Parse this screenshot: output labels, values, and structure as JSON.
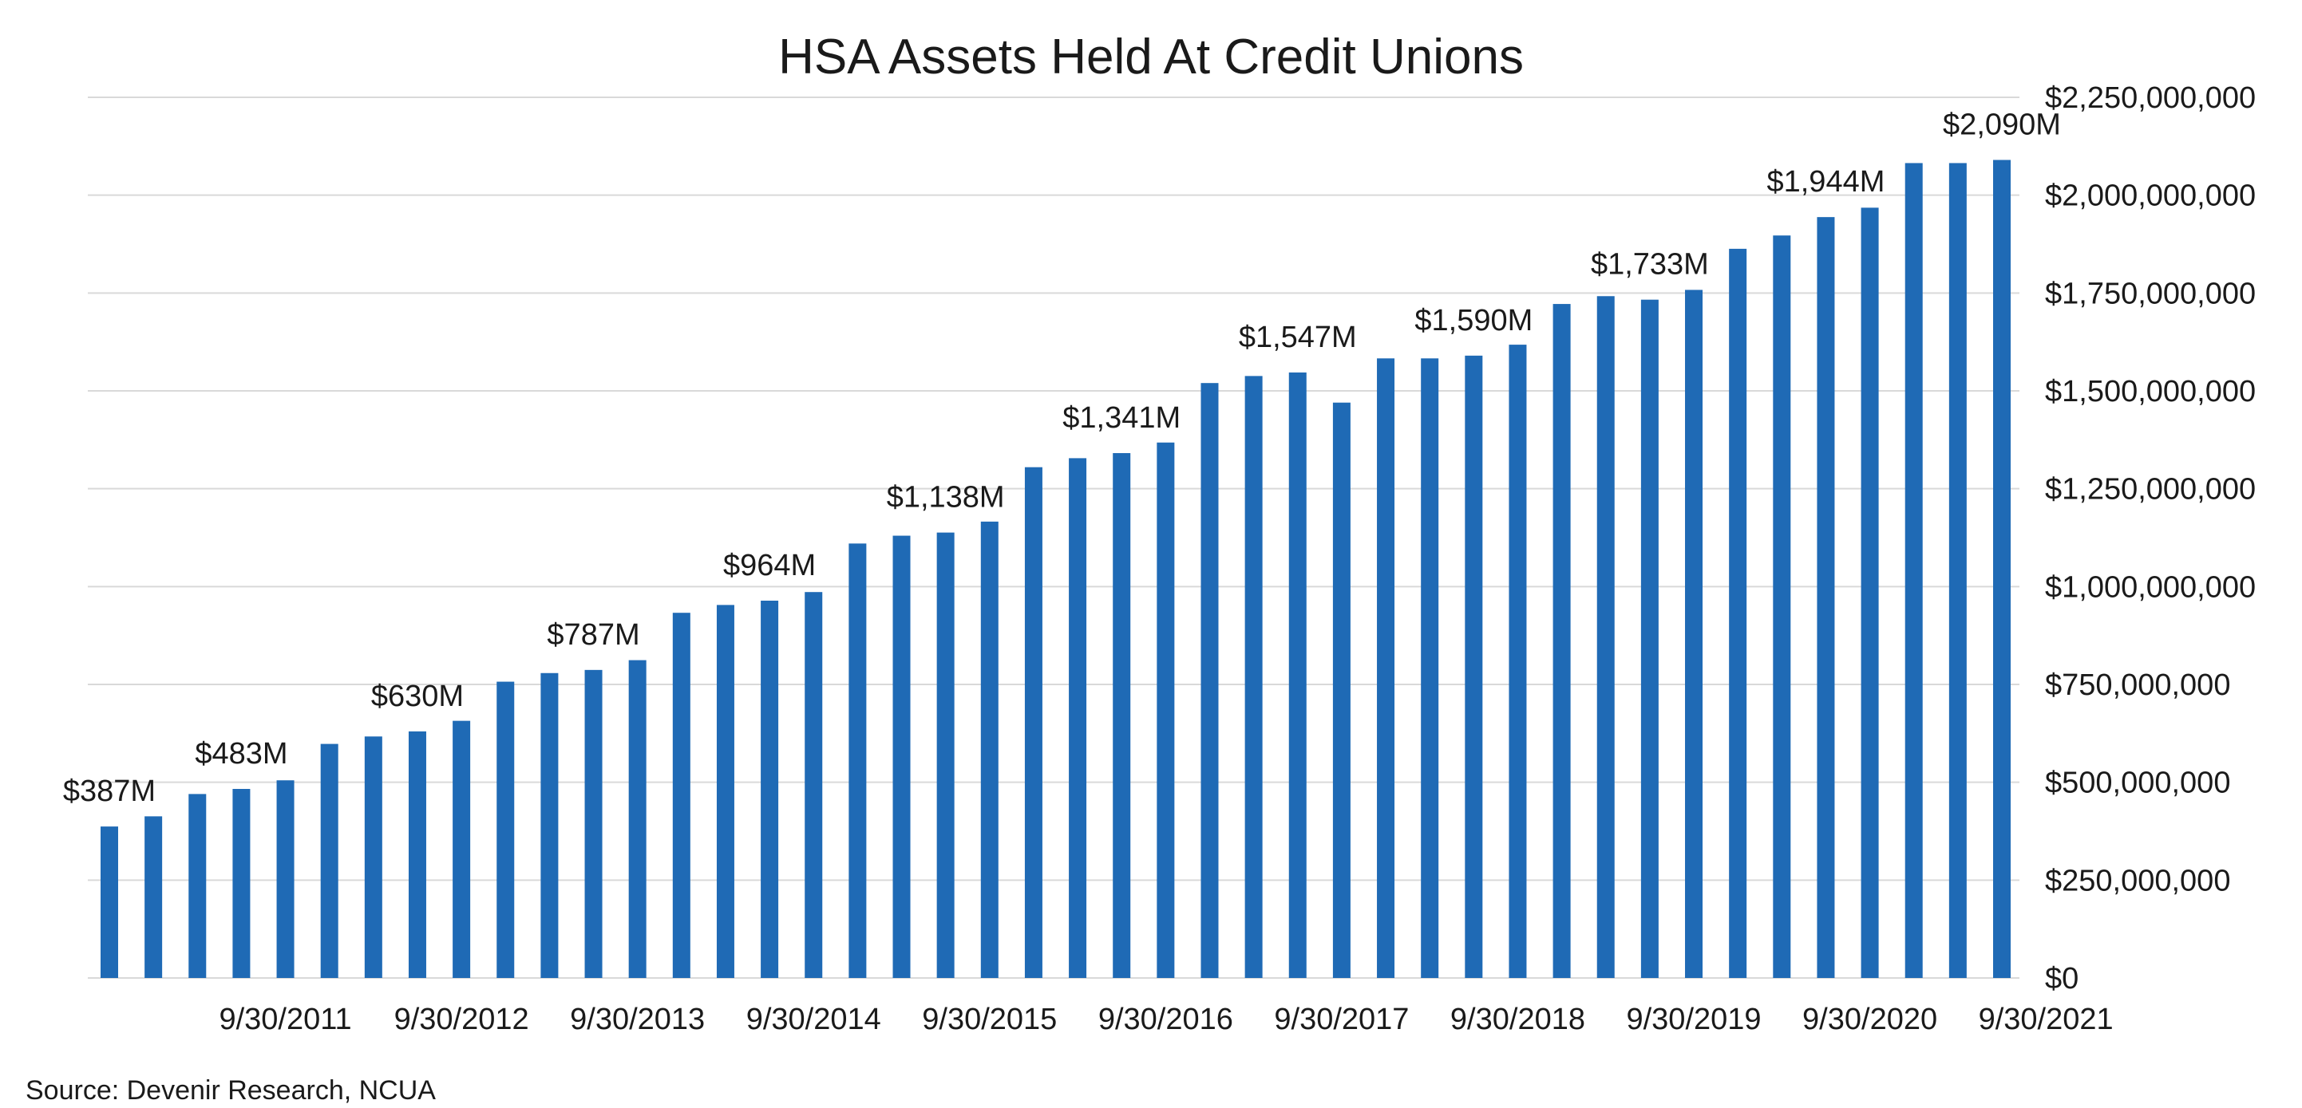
{
  "chart_data": {
    "type": "bar",
    "title": "HSA Assets Held At Credit Unions",
    "source": "Source: Devenir Research, NCUA",
    "xlabel": "",
    "ylabel": "",
    "ylim": [
      0,
      2250000000
    ],
    "grid": true,
    "legend": "none",
    "bar_color": "#1f6ab5",
    "grid_color": "#d9d9d9",
    "y_ticks": [
      {
        "value": 0,
        "label": "$0"
      },
      {
        "value": 250000000,
        "label": "$250,000,000"
      },
      {
        "value": 500000000,
        "label": "$500,000,000"
      },
      {
        "value": 750000000,
        "label": "$750,000,000"
      },
      {
        "value": 1000000000,
        "label": "$1,000,000,000"
      },
      {
        "value": 1250000000,
        "label": "$1,250,000,000"
      },
      {
        "value": 1500000000,
        "label": "$1,500,000,000"
      },
      {
        "value": 1750000000,
        "label": "$1,750,000,000"
      },
      {
        "value": 2000000000,
        "label": "$2,000,000,000"
      },
      {
        "value": 2250000000,
        "label": "$2,250,000,000"
      }
    ],
    "x_tick_labels": [
      {
        "bar_index": 4,
        "label": "9/30/2011"
      },
      {
        "bar_index": 8,
        "label": "9/30/2012"
      },
      {
        "bar_index": 12,
        "label": "9/30/2013"
      },
      {
        "bar_index": 16,
        "label": "9/30/2014"
      },
      {
        "bar_index": 20,
        "label": "9/30/2015"
      },
      {
        "bar_index": 24,
        "label": "9/30/2016"
      },
      {
        "bar_index": 28,
        "label": "9/30/2017"
      },
      {
        "bar_index": 32,
        "label": "9/30/2018"
      },
      {
        "bar_index": 36,
        "label": "9/30/2019"
      },
      {
        "bar_index": 40,
        "label": "9/30/2020"
      },
      {
        "bar_index": 44,
        "label": "9/30/2021"
      }
    ],
    "values": [
      387000000,
      413000000,
      470000000,
      483000000,
      505000000,
      598000000,
      617000000,
      630000000,
      657000000,
      757000000,
      779000000,
      787000000,
      812000000,
      933000000,
      953000000,
      964000000,
      986000000,
      1110000000,
      1130000000,
      1138000000,
      1166000000,
      1305000000,
      1328000000,
      1341000000,
      1368000000,
      1520000000,
      1538000000,
      1547000000,
      1470000000,
      1583000000,
      1583000000,
      1590000000,
      1618000000,
      1722000000,
      1742000000,
      1733000000,
      1758000000,
      1863000000,
      1897000000,
      1944000000,
      1968000000,
      2082000000,
      2082000000,
      2090000000
    ],
    "data_labels": [
      {
        "bar_index": 0,
        "label": "$387M"
      },
      {
        "bar_index": 3,
        "label": "$483M"
      },
      {
        "bar_index": 7,
        "label": "$630M"
      },
      {
        "bar_index": 11,
        "label": "$787M"
      },
      {
        "bar_index": 15,
        "label": "$964M"
      },
      {
        "bar_index": 19,
        "label": "$1,138M"
      },
      {
        "bar_index": 23,
        "label": "$1,341M"
      },
      {
        "bar_index": 27,
        "label": "$1,547M"
      },
      {
        "bar_index": 31,
        "label": "$1,590M"
      },
      {
        "bar_index": 35,
        "label": "$1,733M"
      },
      {
        "bar_index": 39,
        "label": "$1,944M"
      },
      {
        "bar_index": 43,
        "label": "$2,090M"
      }
    ]
  }
}
